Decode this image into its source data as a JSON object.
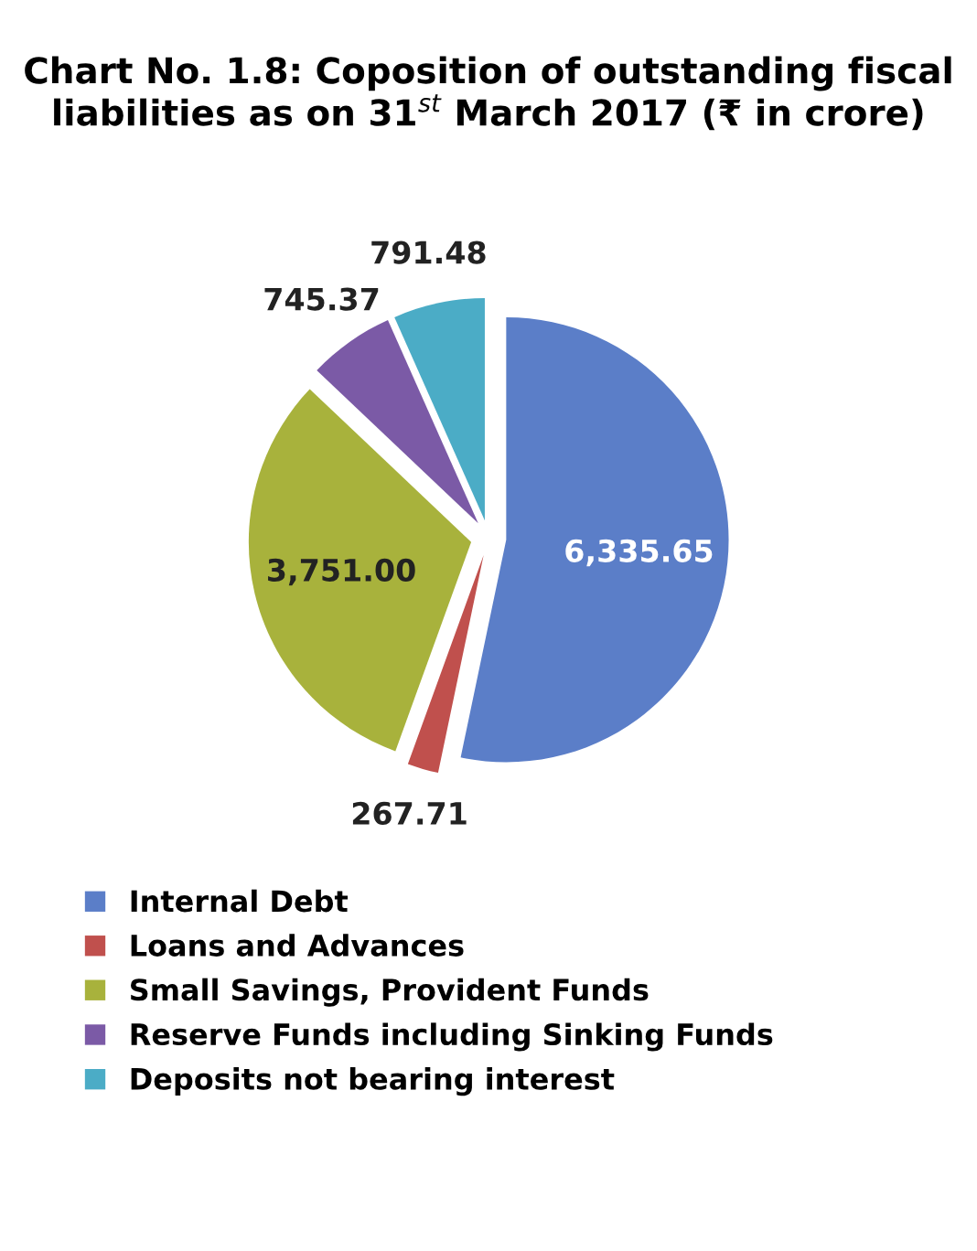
{
  "chart_data": {
    "type": "pie",
    "title": "Chart No. 1.8: Coposition of outstanding fiscal liabilities as on 31$^{st}$ March 2017 (₹ in crore)",
    "categories": [
      "Internal Debt",
      "Loans and Advances",
      "Small Savings, Provident Funds",
      "Reserve Funds including Sinking Funds",
      "Deposits not bearing interest"
    ],
    "values": [
      6335.65,
      267.71,
      3751.0,
      745.37,
      791.48
    ],
    "value_labels": [
      "6,335.65",
      "267.71",
      "3,751.00",
      "745.37",
      "791.48"
    ],
    "colors": [
      "#5b7ec8",
      "#c0504d",
      "#a8b23c",
      "#7b5aa6",
      "#4bacc6"
    ],
    "legend": "bottom"
  }
}
